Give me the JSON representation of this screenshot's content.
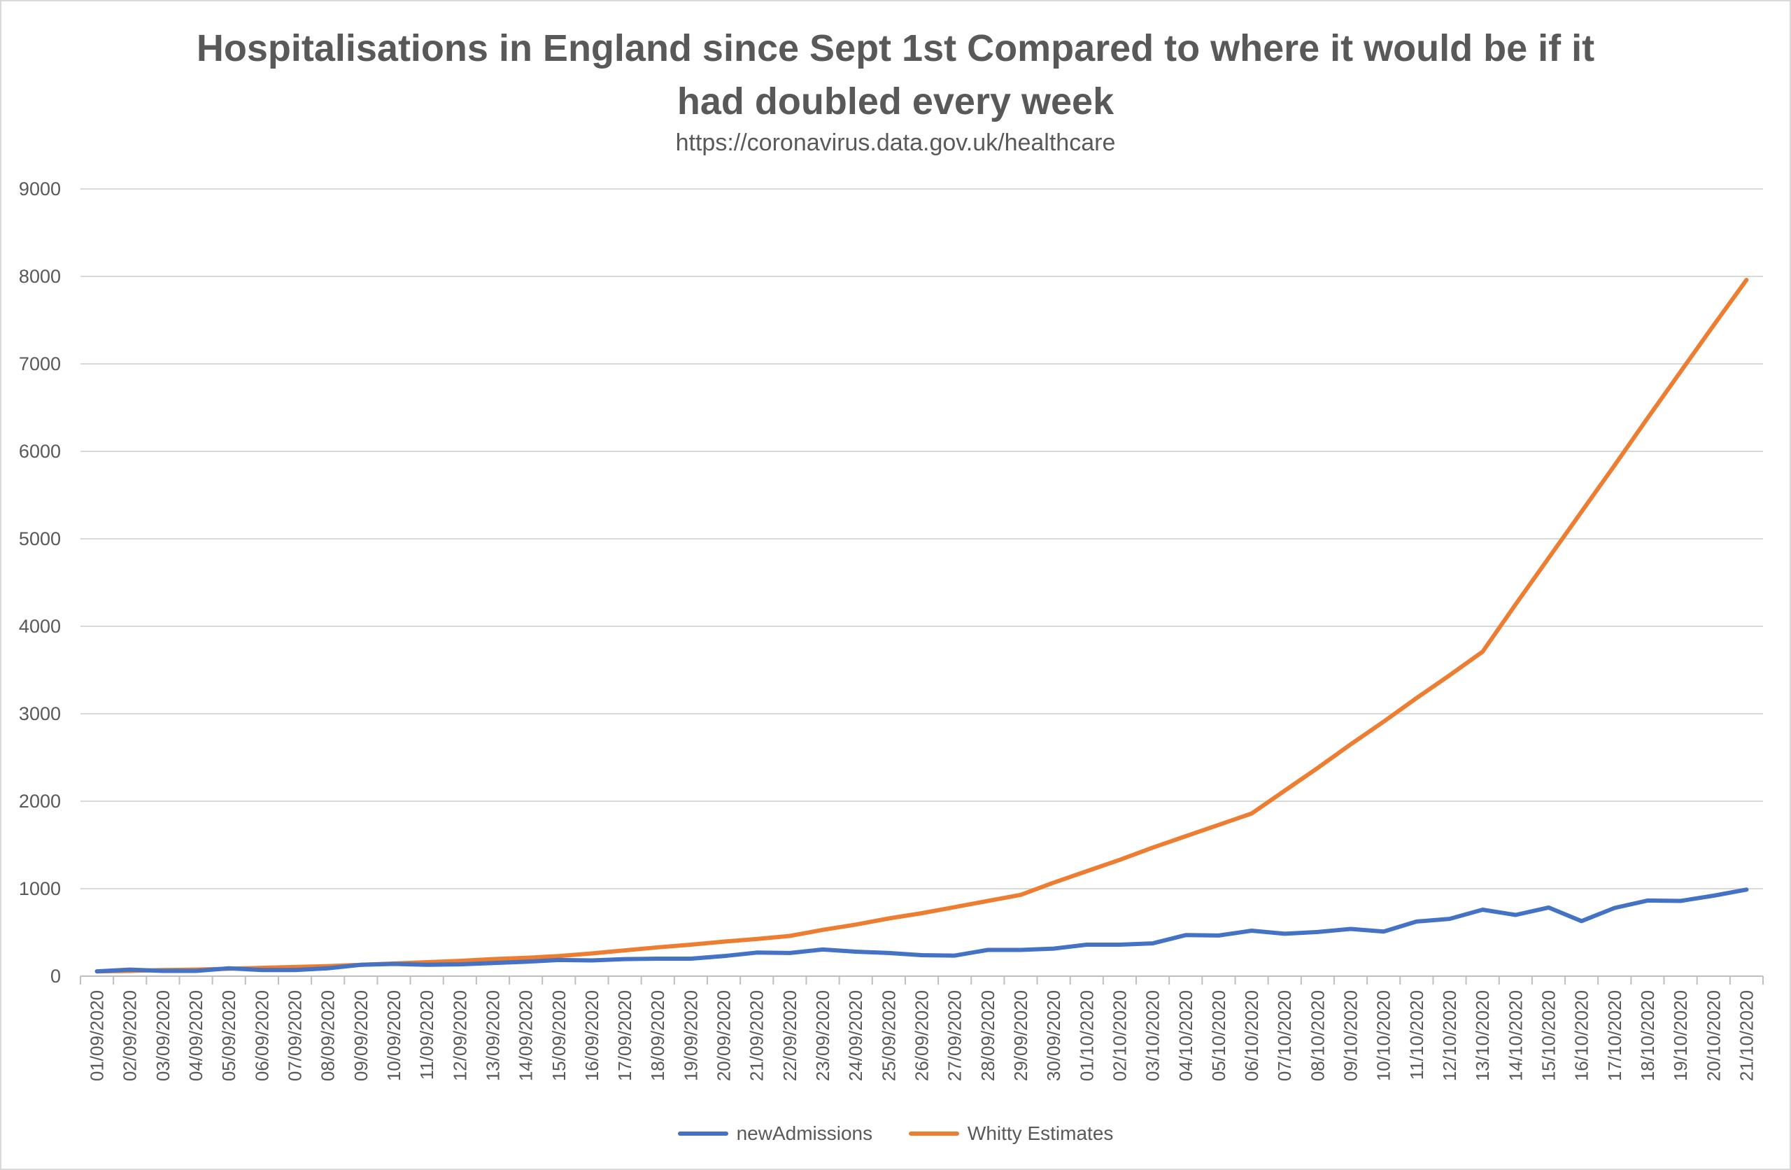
{
  "chart_data": {
    "type": "line",
    "title_line1": "Hospitalisations in England since Sept 1st Compared to where it would be if it",
    "title_line2": "had doubled every week",
    "subtitle": "https://coronavirus.data.gov.uk/healthcare",
    "xlabel": "",
    "ylabel": "",
    "ylim": [
      0,
      9000
    ],
    "yticks": [
      0,
      1000,
      2000,
      3000,
      4000,
      5000,
      6000,
      7000,
      8000,
      9000
    ],
    "grid": true,
    "legend_position": "bottom",
    "categories": [
      "01/09/2020",
      "02/09/2020",
      "03/09/2020",
      "04/09/2020",
      "05/09/2020",
      "06/09/2020",
      "07/09/2020",
      "08/09/2020",
      "09/09/2020",
      "10/09/2020",
      "11/09/2020",
      "12/09/2020",
      "13/09/2020",
      "14/09/2020",
      "15/09/2020",
      "16/09/2020",
      "17/09/2020",
      "18/09/2020",
      "19/09/2020",
      "20/09/2020",
      "21/09/2020",
      "22/09/2020",
      "23/09/2020",
      "24/09/2020",
      "25/09/2020",
      "26/09/2020",
      "27/09/2020",
      "28/09/2020",
      "29/09/2020",
      "30/09/2020",
      "01/10/2020",
      "02/10/2020",
      "03/10/2020",
      "04/10/2020",
      "05/10/2020",
      "06/10/2020",
      "07/10/2020",
      "08/10/2020",
      "09/10/2020",
      "10/10/2020",
      "11/10/2020",
      "12/10/2020",
      "13/10/2020",
      "14/10/2020",
      "15/10/2020",
      "16/10/2020",
      "17/10/2020",
      "18/10/2020",
      "19/10/2020",
      "20/10/2020",
      "21/10/2020"
    ],
    "series": [
      {
        "name": "newAdmissions",
        "color": "#4472c4",
        "values": [
          55,
          75,
          60,
          60,
          90,
          70,
          70,
          90,
          130,
          140,
          130,
          135,
          150,
          165,
          185,
          180,
          195,
          200,
          200,
          230,
          270,
          265,
          305,
          280,
          265,
          240,
          235,
          300,
          300,
          315,
          360,
          360,
          375,
          470,
          465,
          520,
          485,
          505,
          540,
          510,
          625,
          655,
          760,
          700,
          785,
          630,
          780,
          865,
          860,
          920,
          990
        ]
      },
      {
        "name": "Whitty Estimates",
        "color": "#ed7d31",
        "values": [
          55,
          60,
          70,
          75,
          85,
          95,
          105,
          115,
          130,
          145,
          160,
          175,
          195,
          210,
          230,
          260,
          295,
          330,
          360,
          395,
          425,
          460,
          530,
          590,
          660,
          720,
          790,
          860,
          930,
          1070,
          1200,
          1330,
          1470,
          1600,
          1730,
          1860,
          2120,
          2380,
          2650,
          2910,
          3180,
          3440,
          3710,
          4250,
          4780,
          5310,
          5840,
          6380,
          6910,
          7440,
          7960
        ]
      }
    ]
  }
}
